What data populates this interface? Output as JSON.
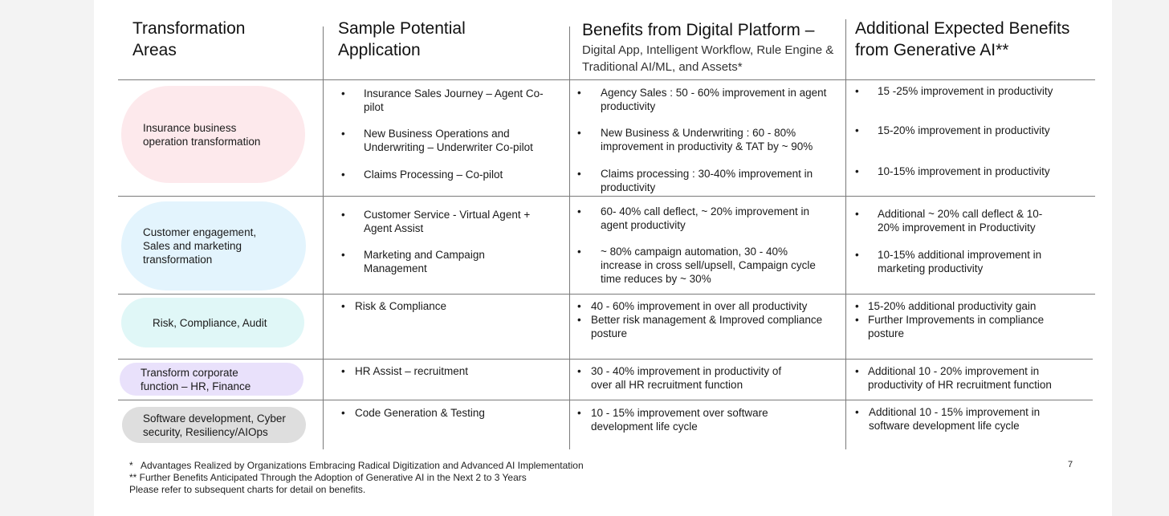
{
  "headers": {
    "col1": "Transformation\nAreas",
    "col2": "Sample Potential\nApplication",
    "col3_title": "Benefits from Digital Platform –",
    "col3_sub": "Digital App, Intelligent Workflow, Rule Engine &\nTraditional AI/ML, and Assets*",
    "col4": "Additional Expected Benefits\nfrom Generative AI**"
  },
  "bullet": "•",
  "rows": [
    {
      "area": "Insurance business\noperation transformation",
      "area_color": "#fde9ec",
      "applications": [
        "Insurance  Sales Journey – Agent Co-\npilot",
        "New Business Operations and\nUnderwriting – Underwriter Co-pilot",
        "Claims Processing – Co-pilot"
      ],
      "digital_benefits": [
        "Agency Sales : 50 - 60% improvement in agent\nproductivity",
        "New Business & Underwriting :  60 - 80%\nimprovement in productivity & TAT by ~ 90%",
        "Claims processing : 30-40% improvement in\nproductivity"
      ],
      "genai_benefits": [
        "15 -25%  improvement in  productivity",
        "15-20% improvement in productivity",
        "10-15% improvement in productivity"
      ]
    },
    {
      "area": "Customer engagement,\nSales and marketing\ntransformation",
      "area_color": "#e3f4fd",
      "applications": [
        "Customer Service - Virtual Agent +\nAgent Assist",
        "Marketing and Campaign\nManagement"
      ],
      "digital_benefits": [
        "60- 40% call deflect, ~  20% improvement in\nagent productivity",
        "~ 80% campaign  automation, 30 - 40%\nincrease in cross sell/upsell, Campaign cycle\ntime reduces by ~ 30%"
      ],
      "genai_benefits": [
        "Additional ~ 20% call deflect &  10-\n20% improvement in Productivity",
        "10-15% additional improvement in\nmarketing productivity"
      ]
    },
    {
      "area": "Risk, Compliance, Audit",
      "area_color": "#e0f7f7",
      "applications": [
        "Risk & Compliance"
      ],
      "digital_benefits": [
        "40 - 60% improvement in over all productivity",
        "Better risk management & Improved compliance\nposture"
      ],
      "genai_benefits": [
        "15-20% additional productivity gain",
        "Further Improvements in compliance\nposture"
      ]
    },
    {
      "area": "Transform corporate\nfunction – HR, Finance",
      "area_color": "#e9e1fb",
      "applications": [
        "HR Assist – recruitment"
      ],
      "digital_benefits": [
        "30 - 40% improvement in productivity of\nover all HR recruitment function"
      ],
      "genai_benefits": [
        "Additional 10 - 20% improvement in\nproductivity of HR recruitment function"
      ]
    },
    {
      "area": "Software development, Cyber\nsecurity, Resiliency/AIOps",
      "area_color": "#dedede",
      "applications": [
        "Code Generation & Testing"
      ],
      "digital_benefits": [
        "10 - 15% improvement over software\ndevelopment life cycle"
      ],
      "genai_benefits": [
        "Additional 10 - 15% improvement in\nsoftware development life cycle"
      ]
    }
  ],
  "footnotes": {
    "note1": "*   Advantages Realized by Organizations Embracing Radical Digitization and Advanced AI Implementation",
    "note2": "** Further Benefits Anticipated Through the Adoption of Generative AI in the Next 2 to 3 Years",
    "note3": "Please refer to subsequent charts for detail on benefits.",
    "page_number": "7"
  }
}
